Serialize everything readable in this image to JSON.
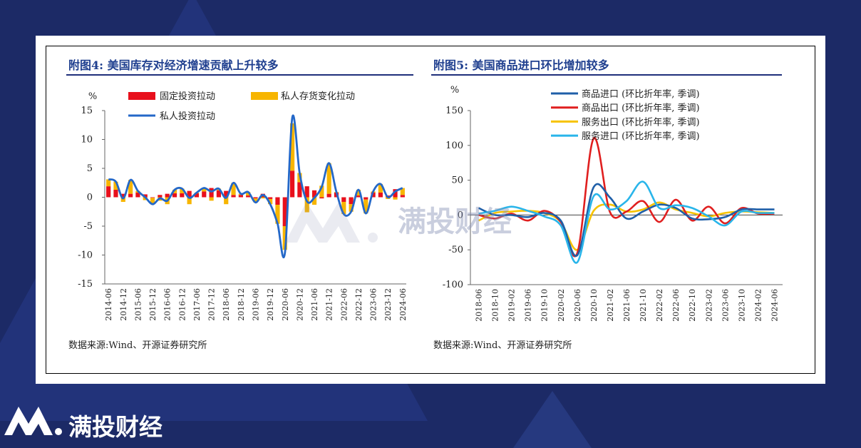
{
  "colors": {
    "background": "#1c2a66",
    "title": "#1f3f8f",
    "fixed": "#e8101c",
    "private_inv": "#f7b500",
    "line_blue": "#2468c8",
    "imports": "#1f5fa8",
    "exports": "#e01f1f",
    "services_exp": "#f7c300",
    "services_imp": "#29b5ea"
  },
  "left": {
    "title": "附图4:  美国库存对经济增速贡献上升较多",
    "source": "数据来源:Wind、开源证券研究所"
  },
  "right": {
    "title": "附图5:  美国商品进口环比增加较多",
    "source": "数据来源:Wind、开源证券研究所"
  },
  "watermark": {
    "text": "满投财经"
  },
  "brand": {
    "name": "满投财经"
  },
  "chart_data": [
    {
      "type": "bar",
      "ylabel": "%",
      "ylim": [
        -15,
        15
      ],
      "yticks": [
        15,
        10,
        5,
        0,
        -5,
        -10,
        -15
      ],
      "categories": [
        "2014-06",
        "2014-09",
        "2014-12",
        "2015-03",
        "2015-06",
        "2015-09",
        "2015-12",
        "2016-03",
        "2016-06",
        "2016-09",
        "2016-12",
        "2017-03",
        "2017-06",
        "2017-09",
        "2017-12",
        "2018-03",
        "2018-06",
        "2018-09",
        "2018-12",
        "2019-03",
        "2019-06",
        "2019-09",
        "2019-12",
        "2020-03",
        "2020-06",
        "2020-09",
        "2020-12",
        "2021-03",
        "2021-06",
        "2021-09",
        "2021-12",
        "2022-03",
        "2022-06",
        "2022-09",
        "2022-12",
        "2023-03",
        "2023-06",
        "2023-09",
        "2023-12",
        "2024-03",
        "2024-06"
      ],
      "xtick_labels": [
        "2014-06",
        "2014-12",
        "2015-06",
        "2015-12",
        "2016-06",
        "2016-12",
        "2017-06",
        "2017-12",
        "2018-06",
        "2018-12",
        "2019-06",
        "2019-12",
        "2020-06",
        "2020-12",
        "2021-06",
        "2021-12",
        "2022-06",
        "2022-12",
        "2023-06",
        "2023-12",
        "2024-06"
      ],
      "series": [
        {
          "name": "固定投资拉动",
          "kind": "bar",
          "values": [
            1.9,
            1.3,
            0.6,
            0.6,
            0.8,
            0.5,
            -0.1,
            0.4,
            0.6,
            0.7,
            0.7,
            1.1,
            0.7,
            1.0,
            1.6,
            1.2,
            1.1,
            0.4,
            0.4,
            0.3,
            -0.2,
            0.6,
            -0.3,
            -1.3,
            -5.0,
            4.6,
            2.6,
            1.9,
            1.2,
            -0.2,
            0.6,
            0.8,
            -0.8,
            -1.2,
            0.3,
            -0.4,
            0.8,
            0.8,
            0.3,
            1.4,
            0.4
          ]
        },
        {
          "name": "私人存货变化拉动",
          "kind": "bar",
          "values": [
            1.2,
            1.4,
            -0.8,
            2.4,
            0.3,
            -0.5,
            -1.1,
            -0.6,
            -1.2,
            0.6,
            0.8,
            -1.2,
            0.1,
            0.6,
            -0.6,
            0.3,
            -1.2,
            2.1,
            0.2,
            0.6,
            -0.7,
            -0.2,
            -0.9,
            -3.3,
            -4.1,
            8.2,
            1.6,
            -2.6,
            -1.3,
            2.0,
            5.3,
            0.1,
            -2.1,
            -1.3,
            1.0,
            -2.4,
            0.2,
            1.5,
            -0.3,
            -0.4,
            1.2
          ]
        },
        {
          "name": "私人投资拉动",
          "kind": "line",
          "values": [
            3.1,
            2.7,
            -0.2,
            3.0,
            1.1,
            0.0,
            -1.2,
            -0.2,
            -0.6,
            1.3,
            1.5,
            -0.1,
            0.8,
            1.6,
            1.0,
            1.5,
            -0.1,
            2.5,
            0.6,
            0.9,
            -0.9,
            0.4,
            -1.2,
            -4.6,
            -9.6,
            13.8,
            4.2,
            -0.7,
            -0.1,
            1.8,
            5.9,
            0.9,
            -2.9,
            -2.5,
            1.3,
            -2.8,
            1.0,
            2.3,
            0.0,
            1.0,
            1.6
          ]
        }
      ]
    },
    {
      "type": "line",
      "ylabel": "%",
      "ylim": [
        -100,
        150
      ],
      "yticks": [
        150,
        100,
        50,
        0,
        -50,
        -100
      ],
      "categories": [
        "2018-06",
        "2018-10",
        "2019-02",
        "2019-06",
        "2019-10",
        "2020-02",
        "2020-06",
        "2020-10",
        "2021-02",
        "2021-06",
        "2021-10",
        "2022-02",
        "2022-06",
        "2022-10",
        "2023-02",
        "2023-06",
        "2023-10",
        "2024-02",
        "2024-06"
      ],
      "series": [
        {
          "name": "商品进口 (环比折年率, 季调)",
          "values": [
            10,
            0,
            0,
            -3,
            3,
            -8,
            -58,
            40,
            25,
            -5,
            5,
            15,
            10,
            -5,
            -6,
            -3,
            8,
            8,
            8
          ]
        },
        {
          "name": "商品出口 (环比折年率, 季调)",
          "values": [
            0,
            -5,
            2,
            -8,
            6,
            -10,
            -55,
            110,
            4,
            5,
            20,
            -10,
            22,
            -8,
            12,
            -12,
            10,
            2,
            2
          ]
        },
        {
          "name": "服务出口 (环比折年率, 季调)",
          "values": [
            -8,
            3,
            5,
            6,
            3,
            -10,
            -50,
            6,
            15,
            5,
            8,
            18,
            8,
            3,
            -2,
            3,
            5,
            4,
            3
          ]
        },
        {
          "name": "服务进口 (环比折年率, 季调)",
          "values": [
            2,
            6,
            12,
            6,
            -2,
            -15,
            -68,
            27,
            8,
            20,
            48,
            10,
            14,
            10,
            -2,
            -15,
            5,
            3,
            3
          ]
        }
      ]
    }
  ]
}
